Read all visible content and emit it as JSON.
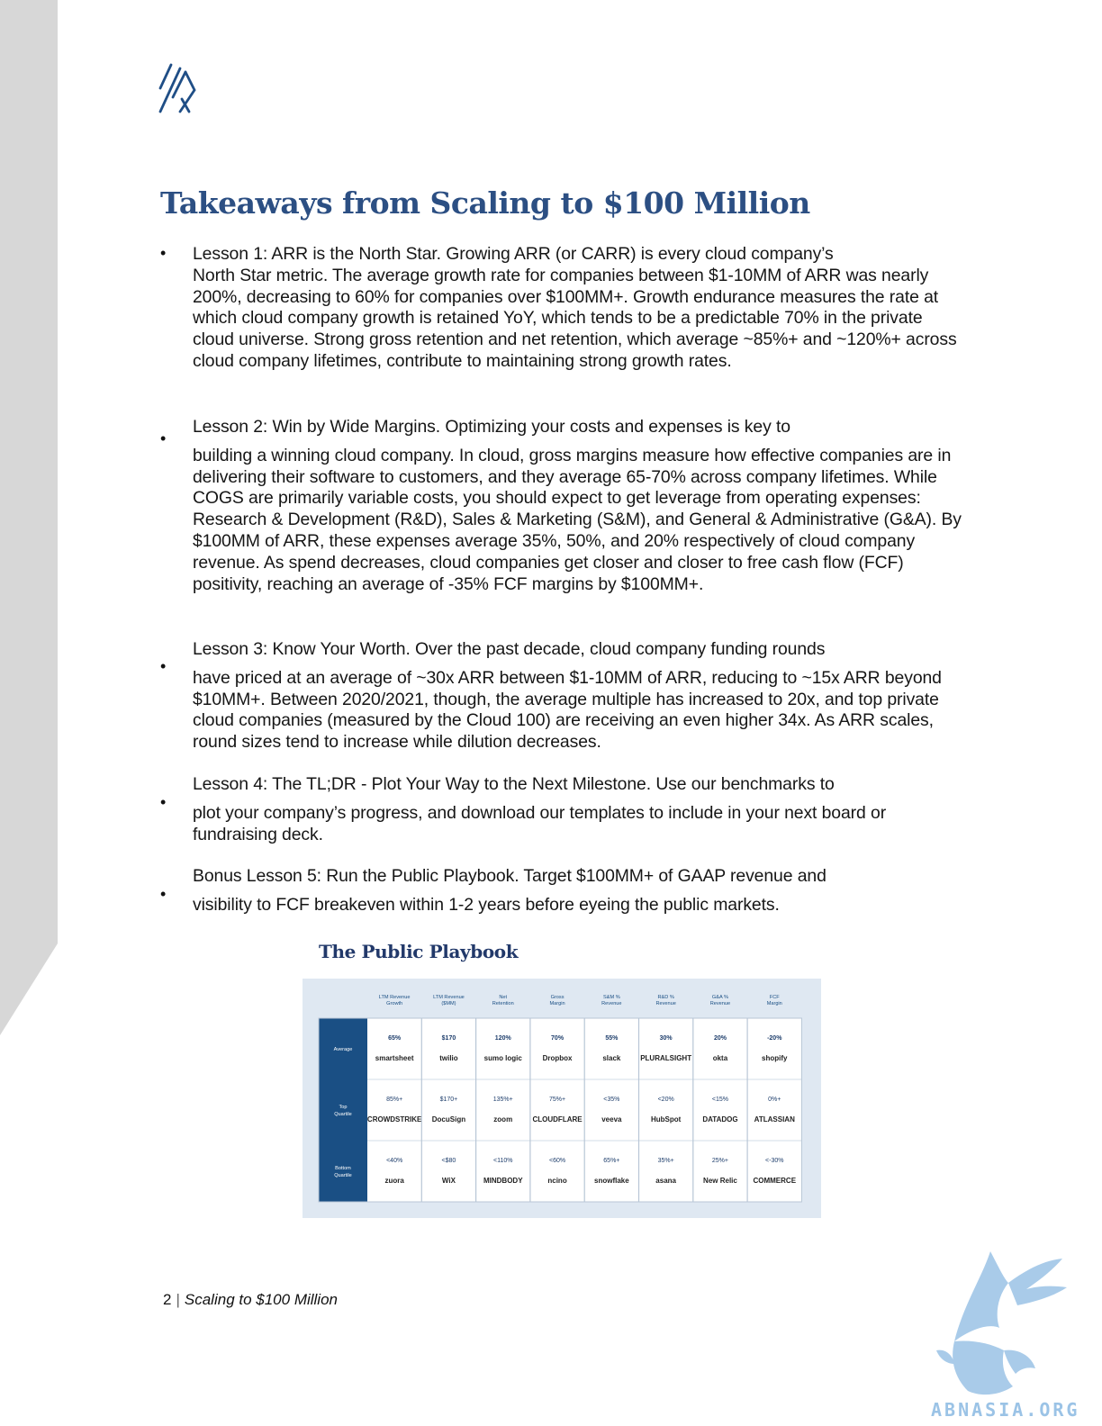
{
  "page": {
    "title": "Takeaways from Scaling to $100 Million",
    "lessons": [
      {
        "first_line": "Lesson 1: ARR is the North Star. Growing ARR (or CARR) is every cloud company’s",
        "rest": "North Star metric. The average growth rate for companies between $1-10MM of ARR was nearly 200%, decreasing to 60% for companies over $100MM+. Growth endurance measures the rate at which cloud company growth is retained YoY, which tends to be a predictable 70% in the private cloud universe. Strong gross retention and net retention, which average ~85%+ and ~120%+ across cloud company lifetimes, contribute to maintaining strong growth rates."
      },
      {
        "first_line": "Lesson 2: Win by Wide Margins. Optimizing your costs and expenses is key to",
        "rest": "building a winning cloud company. In cloud, gross margins measure how effective companies are in delivering their software to customers, and they average 65-70% across company lifetimes. While COGS are primarily variable costs, you should expect to get leverage from operating expenses: Research & Development (R&D), Sales & Marketing (S&M), and General & Administrative (G&A). By $100MM of ARR, these expenses average 35%, 50%, and 20% respectively of cloud company revenue. As spend decreases, cloud companies get closer and closer to free cash flow (FCF) positivity, reaching an average of -35% FCF margins by $100MM+."
      },
      {
        "first_line": "Lesson 3: Know Your Worth. Over the past decade, cloud company funding rounds",
        "rest": "have priced at an average of ~30x ARR between $1-10MM of ARR, reducing to ~15x ARR beyond $10MM+. Between 2020/2021, though, the average multiple has increased to 20x, and top private cloud companies (measured by the Cloud 100) are receiving an even higher 34x. As ARR scales, round sizes tend to increase while dilution decreases."
      },
      {
        "first_line": "Lesson 4: The TL;DR - Plot Your Way to the Next Milestone. Use our benchmarks to",
        "rest": "plot your company’s progress, and download our templates to include in your next board or fundraising deck."
      },
      {
        "first_line": "Bonus Lesson 5: Run the Public Playbook. Target $100MM+ of GAAP revenue and",
        "rest": "visibility to FCF breakeven within 1-2 years before eyeing the public markets."
      }
    ]
  },
  "playbook": {
    "title": "The Public Playbook",
    "columns": [
      "LTM Revenue Growth",
      "LTM Revenue ($MM)",
      "Net Retention",
      "Gross Margin",
      "S&M % Revenue",
      "R&D % Revenue",
      "G&A % Revenue",
      "FCF Margin"
    ],
    "rows": [
      {
        "label": "Average",
        "values": [
          "65%",
          "$170",
          "120%",
          "70%",
          "55%",
          "30%",
          "20%",
          "-20%"
        ],
        "logos": [
          "smartsheet",
          "twilio",
          "sumo logic",
          "Dropbox",
          "slack",
          "PLURALSIGHT",
          "okta",
          "shopify"
        ]
      },
      {
        "label": "Top Quartile",
        "values": [
          "85%+",
          "$170+",
          "135%+",
          "75%+",
          "<35%",
          "<20%",
          "<15%",
          "0%+"
        ],
        "logos": [
          "CROWDSTRIKE",
          "DocuSign",
          "zoom",
          "CLOUDFLARE",
          "veeva",
          "HubSpot",
          "DATADOG",
          "ATLASSIAN"
        ]
      },
      {
        "label": "Bottom Quartile",
        "values": [
          "<40%",
          "<$80",
          "<110%",
          "<60%",
          "65%+",
          "35%+",
          "25%+",
          "<-30%"
        ],
        "logos": [
          "zuora",
          "WiX",
          "MINDBODY",
          "ncino",
          "snowflake",
          "asana",
          "New Relic",
          "COMMERCE"
        ]
      }
    ]
  },
  "footer": {
    "page_number": "2",
    "separator": "|",
    "doc_title": "Scaling to $100 Million"
  },
  "watermark": {
    "text": "ABNASIA.ORG"
  },
  "colors": {
    "title": "#2c4f83",
    "side_band": "#d7d7d7",
    "table_header": "#1a4f84",
    "table_values": "#1d3d6b",
    "watermark": "#9bc3e6"
  }
}
